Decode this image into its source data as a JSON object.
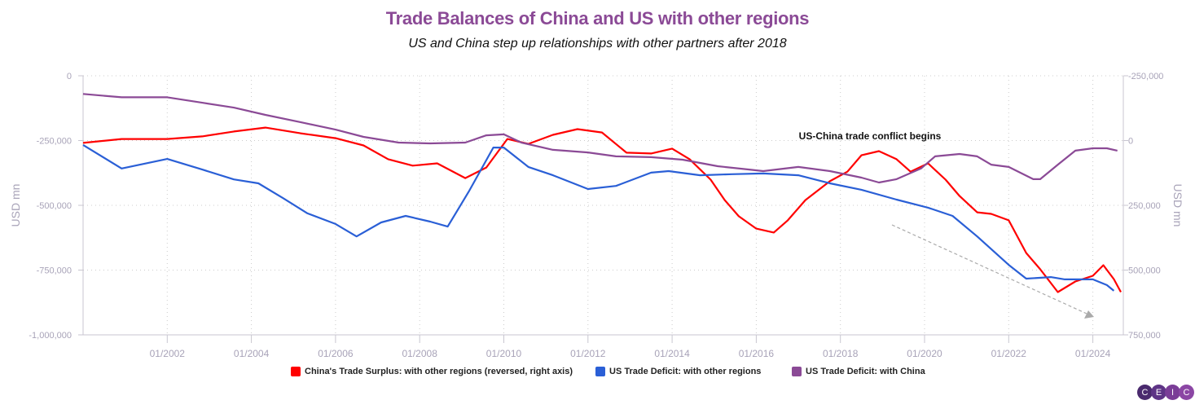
{
  "chart_data": {
    "type": "line",
    "title": "Trade Balances of China and US with other regions",
    "subtitle": "US and China step up relationships with other partners after 2018",
    "left_axis": {
      "label": "USD mn",
      "range": [
        -1000000,
        0
      ],
      "ticks": [
        "0",
        "-250,000",
        "-500,000",
        "-750,000",
        "-1,000,000"
      ]
    },
    "right_axis": {
      "label": "USD mn",
      "range": [
        -250000,
        750000
      ],
      "reversed": true,
      "ticks": [
        "-250,000",
        "0",
        "250,000",
        "500,000",
        "750,000"
      ]
    },
    "x_axis": {
      "range": [
        "2000-01",
        "2024-09"
      ],
      "ticks": [
        "01/2002",
        "01/2004",
        "01/2006",
        "01/2008",
        "01/2010",
        "01/2012",
        "01/2014",
        "01/2016",
        "01/2018",
        "01/2020",
        "01/2022",
        "01/2024"
      ]
    },
    "grid": true,
    "legend_position": "bottom",
    "annotation": {
      "text": "US-China trade conflict begins",
      "arrow": "dashed downward trend arrow from 2019 to 2024"
    },
    "series": [
      {
        "name": "China's Trade Surplus: with other regions (reversed, right axis)",
        "color": "#ff0000",
        "axis": "right",
        "points": [
          [
            "2000-01",
            9000
          ],
          [
            "2000-12",
            -6000
          ],
          [
            "2002-01",
            -6000
          ],
          [
            "2002-11",
            -16000
          ],
          [
            "2003-08",
            -35000
          ],
          [
            "2004-05",
            -50000
          ],
          [
            "2005-03",
            -28000
          ],
          [
            "2006-01",
            -9000
          ],
          [
            "2006-09",
            19000
          ],
          [
            "2007-04",
            72000
          ],
          [
            "2007-11",
            97000
          ],
          [
            "2008-06",
            88000
          ],
          [
            "2009-02",
            145000
          ],
          [
            "2009-08",
            104000
          ],
          [
            "2010-02",
            -6000
          ],
          [
            "2010-08",
            13000
          ],
          [
            "2011-03",
            -22000
          ],
          [
            "2011-10",
            -44000
          ],
          [
            "2012-05",
            -31000
          ],
          [
            "2012-12",
            47000
          ],
          [
            "2013-07",
            50000
          ],
          [
            "2014-01",
            31000
          ],
          [
            "2014-06",
            72000
          ],
          [
            "2014-12",
            151000
          ],
          [
            "2015-04",
            230000
          ],
          [
            "2015-08",
            292000
          ],
          [
            "2016-01",
            340000
          ],
          [
            "2016-06",
            355000
          ],
          [
            "2016-10",
            308000
          ],
          [
            "2017-03",
            230000
          ],
          [
            "2017-10",
            157000
          ],
          [
            "2018-03",
            120000
          ],
          [
            "2018-07",
            57000
          ],
          [
            "2018-12",
            41000
          ],
          [
            "2019-05",
            72000
          ],
          [
            "2019-09",
            120000
          ],
          [
            "2020-02",
            88000
          ],
          [
            "2020-07",
            151000
          ],
          [
            "2020-11",
            214000
          ],
          [
            "2021-04",
            277000
          ],
          [
            "2021-08",
            283000
          ],
          [
            "2022-01",
            308000
          ],
          [
            "2022-06",
            434000
          ],
          [
            "2022-10",
            497000
          ],
          [
            "2023-03",
            585000
          ],
          [
            "2023-08",
            544000
          ],
          [
            "2024-01",
            522000
          ],
          [
            "2024-04",
            481000
          ],
          [
            "2024-07",
            535000
          ],
          [
            "2024-09",
            585000
          ]
        ]
      },
      {
        "name": "US Trade Deficit: with other regions",
        "color": "#2a5fd6",
        "axis": "left",
        "points": [
          [
            "2000-01",
            -267000
          ],
          [
            "2000-12",
            -358000
          ],
          [
            "2002-01",
            -321000
          ],
          [
            "2002-11",
            -362000
          ],
          [
            "2003-08",
            -400000
          ],
          [
            "2004-03",
            -415000
          ],
          [
            "2004-10",
            -472000
          ],
          [
            "2005-05",
            -531000
          ],
          [
            "2006-01",
            -572000
          ],
          [
            "2006-07",
            -620000
          ],
          [
            "2007-02",
            -566000
          ],
          [
            "2007-09",
            -541000
          ],
          [
            "2008-04",
            -563000
          ],
          [
            "2008-09",
            -582000
          ],
          [
            "2009-03",
            -447000
          ],
          [
            "2009-10",
            -277000
          ],
          [
            "2010-01",
            -277000
          ],
          [
            "2010-08",
            -352000
          ],
          [
            "2011-03",
            -384000
          ],
          [
            "2012-01",
            -437000
          ],
          [
            "2012-09",
            -425000
          ],
          [
            "2013-07",
            -374000
          ],
          [
            "2013-12",
            -368000
          ],
          [
            "2014-09",
            -384000
          ],
          [
            "2015-06",
            -380000
          ],
          [
            "2016-03",
            -377000
          ],
          [
            "2017-01",
            -384000
          ],
          [
            "2017-10",
            -415000
          ],
          [
            "2018-07",
            -440000
          ],
          [
            "2019-05",
            -478000
          ],
          [
            "2020-02",
            -509000
          ],
          [
            "2020-09",
            -541000
          ],
          [
            "2021-04",
            -620000
          ],
          [
            "2022-01",
            -730000
          ],
          [
            "2022-06",
            -783000
          ],
          [
            "2023-01",
            -777000
          ],
          [
            "2023-05",
            -786000
          ],
          [
            "2024-01",
            -786000
          ],
          [
            "2024-05",
            -808000
          ],
          [
            "2024-07",
            -830000
          ]
        ]
      },
      {
        "name": "US Trade Deficit: with China",
        "color": "#8b4a96",
        "axis": "left",
        "points": [
          [
            "2000-01",
            -70000
          ],
          [
            "2000-12",
            -83000
          ],
          [
            "2002-01",
            -83000
          ],
          [
            "2002-11",
            -104000
          ],
          [
            "2003-08",
            -123000
          ],
          [
            "2004-05",
            -151000
          ],
          [
            "2005-03",
            -179000
          ],
          [
            "2006-01",
            -208000
          ],
          [
            "2006-09",
            -236000
          ],
          [
            "2007-07",
            -258000
          ],
          [
            "2008-04",
            -261000
          ],
          [
            "2009-02",
            -258000
          ],
          [
            "2009-08",
            -230000
          ],
          [
            "2010-01",
            -226000
          ],
          [
            "2010-06",
            -258000
          ],
          [
            "2011-03",
            -286000
          ],
          [
            "2012-01",
            -296000
          ],
          [
            "2012-09",
            -311000
          ],
          [
            "2013-07",
            -314000
          ],
          [
            "2014-04",
            -324000
          ],
          [
            "2015-02",
            -349000
          ],
          [
            "2015-11",
            -362000
          ],
          [
            "2016-03",
            -368000
          ],
          [
            "2017-01",
            -352000
          ],
          [
            "2017-10",
            -368000
          ],
          [
            "2018-07",
            -393000
          ],
          [
            "2018-12",
            -412000
          ],
          [
            "2019-05",
            -399000
          ],
          [
            "2019-12",
            -358000
          ],
          [
            "2020-04",
            -311000
          ],
          [
            "2020-11",
            -302000
          ],
          [
            "2021-04",
            -311000
          ],
          [
            "2021-08",
            -343000
          ],
          [
            "2022-01",
            -352000
          ],
          [
            "2022-08",
            -399000
          ],
          [
            "2022-10",
            -399000
          ],
          [
            "2023-03",
            -343000
          ],
          [
            "2023-08",
            -289000
          ],
          [
            "2024-01",
            -280000
          ],
          [
            "2024-05",
            -280000
          ],
          [
            "2024-08",
            -289000
          ]
        ]
      }
    ]
  },
  "logo": {
    "letters": [
      "C",
      "E",
      "I",
      "C"
    ],
    "colors": [
      "#4a2a6e",
      "#5e3486",
      "#7a3d97",
      "#8b46a4"
    ]
  }
}
